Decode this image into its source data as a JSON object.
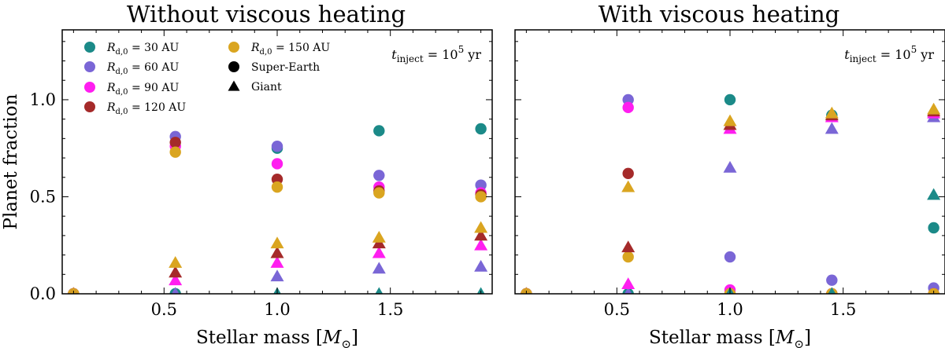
{
  "chart_data": [
    {
      "type": "scatter",
      "title": "Without viscous heating",
      "xlabel": "Stellar mass [M_⊙]",
      "ylabel": "Planet fraction",
      "xlim": [
        0.05,
        1.95
      ],
      "ylim": [
        0.0,
        1.36
      ],
      "xticks": [
        "0.5",
        "1.0",
        "1.5"
      ],
      "yticks": [
        "0.0",
        "0.5",
        "1.0"
      ],
      "annotation": "t_inject = 10^5 yr",
      "legend": {
        "placement": "top-left",
        "entries": [
          {
            "label": "R_d,0 = 30 AU",
            "color": "#1b8a88",
            "marker": "circle"
          },
          {
            "label": "R_d,0 = 60 AU",
            "color": "#7a66d6",
            "marker": "circle"
          },
          {
            "label": "R_d,0 = 90 AU",
            "color": "#ff1ef0",
            "marker": "circle"
          },
          {
            "label": "R_d,0 = 120 AU",
            "color": "#a52a2a",
            "marker": "circle"
          },
          {
            "label": "R_d,0 = 150 AU",
            "color": "#daa520",
            "marker": "circle"
          },
          {
            "label": "Super-Earth",
            "color": "#000000",
            "marker": "circle"
          },
          {
            "label": "Giant",
            "color": "#000000",
            "marker": "triangle"
          }
        ]
      },
      "series": [
        {
          "name": "R_d,0 = 30 AU",
          "color": "#1b8a88",
          "super_earth": [
            [
              0.1,
              0.0
            ],
            [
              0.55,
              0.0
            ],
            [
              1.0,
              0.75
            ],
            [
              1.45,
              0.84
            ],
            [
              1.9,
              0.85
            ]
          ],
          "giant": [
            [
              0.1,
              0.0
            ],
            [
              0.55,
              0.0
            ],
            [
              1.0,
              0.0
            ],
            [
              1.45,
              0.0
            ],
            [
              1.9,
              0.0
            ]
          ]
        },
        {
          "name": "R_d,0 = 60 AU",
          "color": "#7a66d6",
          "super_earth": [
            [
              0.1,
              0.0
            ],
            [
              0.55,
              0.81
            ],
            [
              1.0,
              0.76
            ],
            [
              1.45,
              0.61
            ],
            [
              1.9,
              0.56
            ]
          ],
          "giant": [
            [
              0.1,
              0.0
            ],
            [
              0.55,
              0.0
            ],
            [
              1.0,
              0.09
            ],
            [
              1.45,
              0.13
            ],
            [
              1.9,
              0.14
            ]
          ]
        },
        {
          "name": "R_d,0 = 90 AU",
          "color": "#ff1ef0",
          "super_earth": [
            [
              0.1,
              0.0
            ],
            [
              0.55,
              0.76
            ],
            [
              1.0,
              0.67
            ],
            [
              1.45,
              0.55
            ],
            [
              1.9,
              0.52
            ]
          ],
          "giant": [
            [
              0.1,
              0.0
            ],
            [
              0.55,
              0.07
            ],
            [
              1.0,
              0.16
            ],
            [
              1.45,
              0.21
            ],
            [
              1.9,
              0.25
            ]
          ]
        },
        {
          "name": "R_d,0 = 120 AU",
          "color": "#a52a2a",
          "super_earth": [
            [
              0.1,
              0.0
            ],
            [
              0.55,
              0.78
            ],
            [
              1.0,
              0.59
            ],
            [
              1.45,
              0.53
            ],
            [
              1.9,
              0.51
            ]
          ],
          "giant": [
            [
              0.1,
              0.0
            ],
            [
              0.55,
              0.11
            ],
            [
              1.0,
              0.21
            ],
            [
              1.45,
              0.26
            ],
            [
              1.9,
              0.3
            ]
          ]
        },
        {
          "name": "R_d,0 = 150 AU",
          "color": "#daa520",
          "super_earth": [
            [
              0.1,
              0.0
            ],
            [
              0.55,
              0.73
            ],
            [
              1.0,
              0.55
            ],
            [
              1.45,
              0.52
            ],
            [
              1.9,
              0.5
            ]
          ],
          "giant": [
            [
              0.1,
              0.0
            ],
            [
              0.55,
              0.16
            ],
            [
              1.0,
              0.26
            ],
            [
              1.45,
              0.29
            ],
            [
              1.9,
              0.34
            ]
          ]
        }
      ]
    },
    {
      "type": "scatter",
      "title": "With viscous heating",
      "xlabel": "Stellar mass [M_⊙]",
      "ylabel": "",
      "xlim": [
        0.05,
        1.95
      ],
      "ylim": [
        0.0,
        1.36
      ],
      "xticks": [
        "0.5",
        "1.0",
        "1.5"
      ],
      "yticks": [],
      "annotation": "t_inject = 10^5 yr",
      "series": [
        {
          "name": "R_d,0 = 30 AU",
          "color": "#1b8a88",
          "super_earth": [
            [
              0.1,
              0.0
            ],
            [
              0.55,
              0.0
            ],
            [
              1.0,
              1.0
            ],
            [
              1.45,
              0.92
            ],
            [
              1.9,
              0.34
            ]
          ],
          "giant": [
            [
              0.1,
              0.0
            ],
            [
              0.55,
              0.0
            ],
            [
              1.0,
              0.0
            ],
            [
              1.45,
              0.0
            ],
            [
              1.9,
              0.51
            ]
          ]
        },
        {
          "name": "R_d,0 = 60 AU",
          "color": "#7a66d6",
          "super_earth": [
            [
              0.1,
              0.0
            ],
            [
              0.55,
              1.0
            ],
            [
              1.0,
              0.19
            ],
            [
              1.45,
              0.07
            ],
            [
              1.9,
              0.03
            ]
          ],
          "giant": [
            [
              0.1,
              0.0
            ],
            [
              0.55,
              0.0
            ],
            [
              1.0,
              0.65
            ],
            [
              1.45,
              0.85
            ],
            [
              1.9,
              0.91
            ]
          ]
        },
        {
          "name": "R_d,0 = 90 AU",
          "color": "#ff1ef0",
          "super_earth": [
            [
              0.1,
              0.0
            ],
            [
              0.55,
              0.96
            ],
            [
              1.0,
              0.02
            ],
            [
              1.45,
              0.0
            ],
            [
              1.9,
              0.0
            ]
          ],
          "giant": [
            [
              0.1,
              0.0
            ],
            [
              0.55,
              0.05
            ],
            [
              1.0,
              0.85
            ],
            [
              1.45,
              0.91
            ],
            [
              1.9,
              0.93
            ]
          ]
        },
        {
          "name": "R_d,0 = 120 AU",
          "color": "#a52a2a",
          "super_earth": [
            [
              0.1,
              0.0
            ],
            [
              0.55,
              0.62
            ],
            [
              1.0,
              0.0
            ],
            [
              1.45,
              0.0
            ],
            [
              1.9,
              0.0
            ]
          ],
          "giant": [
            [
              0.1,
              0.0
            ],
            [
              0.55,
              0.24
            ],
            [
              1.0,
              0.87
            ],
            [
              1.45,
              0.92
            ],
            [
              1.9,
              0.94
            ]
          ]
        },
        {
          "name": "R_d,0 = 150 AU",
          "color": "#daa520",
          "super_earth": [
            [
              0.1,
              0.0
            ],
            [
              0.55,
              0.19
            ],
            [
              1.0,
              0.0
            ],
            [
              1.45,
              0.0
            ],
            [
              1.9,
              0.0
            ]
          ],
          "giant": [
            [
              0.1,
              0.0
            ],
            [
              0.55,
              0.55
            ],
            [
              1.0,
              0.89
            ],
            [
              1.45,
              0.93
            ],
            [
              1.9,
              0.95
            ]
          ]
        }
      ]
    }
  ]
}
